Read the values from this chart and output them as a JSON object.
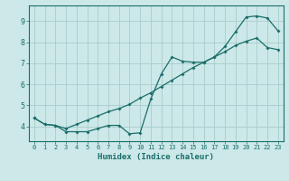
{
  "xlabel": "Humidex (Indice chaleur)",
  "ylabel": "",
  "bg_color": "#cce8e8",
  "grid_color": "#aacccc",
  "line_color": "#1a6e6a",
  "xlim": [
    -0.5,
    23.5
  ],
  "ylim": [
    3.3,
    9.75
  ],
  "xticks": [
    0,
    1,
    2,
    3,
    4,
    5,
    6,
    7,
    8,
    9,
    10,
    11,
    12,
    13,
    14,
    15,
    16,
    17,
    18,
    19,
    20,
    21,
    22,
    23
  ],
  "yticks": [
    4,
    5,
    6,
    7,
    8,
    9
  ],
  "line1_x": [
    0,
    1,
    2,
    3,
    4,
    5,
    6,
    7,
    8,
    9,
    10,
    11,
    12,
    13,
    14,
    15,
    16,
    17,
    18,
    19,
    20,
    21,
    22,
    23
  ],
  "line1_y": [
    4.4,
    4.1,
    4.05,
    3.75,
    3.75,
    3.75,
    3.9,
    4.05,
    4.05,
    3.65,
    3.7,
    5.3,
    6.5,
    7.3,
    7.1,
    7.05,
    7.05,
    7.3,
    7.8,
    8.5,
    9.2,
    9.25,
    9.15,
    8.55
  ],
  "line2_x": [
    0,
    1,
    2,
    3,
    4,
    5,
    6,
    7,
    8,
    9,
    10,
    11,
    12,
    13,
    14,
    15,
    16,
    17,
    18,
    19,
    20,
    21,
    22,
    23
  ],
  "line2_y": [
    4.4,
    4.1,
    4.05,
    3.9,
    4.1,
    4.3,
    4.5,
    4.7,
    4.85,
    5.05,
    5.35,
    5.6,
    5.9,
    6.2,
    6.5,
    6.8,
    7.05,
    7.3,
    7.55,
    7.85,
    8.05,
    8.2,
    7.75,
    7.65
  ]
}
